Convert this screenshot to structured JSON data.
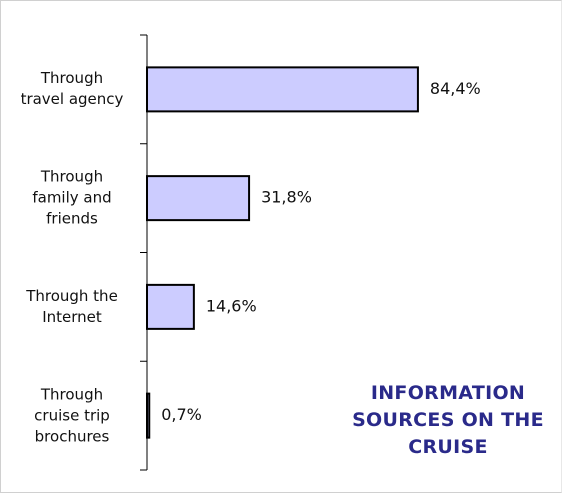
{
  "chart_data": {
    "type": "bar",
    "orientation": "horizontal",
    "title": "INFORMATION SOURCES ON THE CRUISE",
    "categories": [
      "Through travel agency",
      "Through family and friends",
      "Through the Internet",
      "Through cruise trip brochures"
    ],
    "values": [
      84.4,
      31.8,
      14.6,
      0.7
    ],
    "value_labels": [
      "84,4%",
      "31,8%",
      "14,6%",
      "0,7%"
    ],
    "color": "#ccccff"
  }
}
